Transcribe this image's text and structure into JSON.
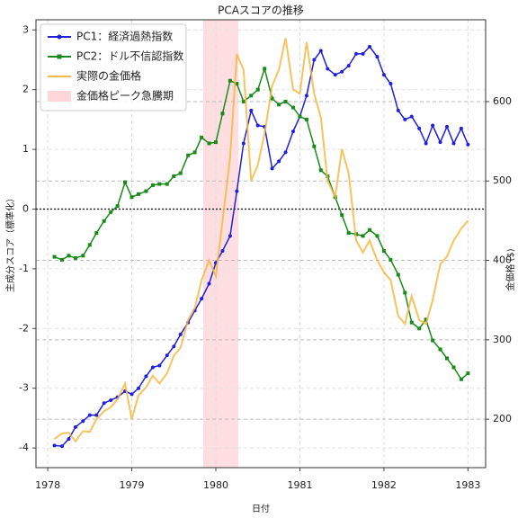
{
  "chart_data": {
    "type": "line",
    "title": "PCAスコアの推移",
    "x_label": "日付",
    "y_label": "主成分スコア（標準化）",
    "y2_label": "金価格 ($)",
    "x": [
      1978.08,
      1978.17,
      1978.25,
      1978.33,
      1978.42,
      1978.5,
      1978.58,
      1978.67,
      1978.75,
      1978.83,
      1978.92,
      1979.0,
      1979.08,
      1979.17,
      1979.25,
      1979.33,
      1979.42,
      1979.5,
      1979.58,
      1979.67,
      1979.75,
      1979.83,
      1979.92,
      1980.0,
      1980.08,
      1980.17,
      1980.25,
      1980.33,
      1980.42,
      1980.5,
      1980.58,
      1980.67,
      1980.75,
      1980.83,
      1980.92,
      1981.0,
      1981.08,
      1981.17,
      1981.25,
      1981.33,
      1981.42,
      1981.5,
      1981.58,
      1981.67,
      1981.75,
      1981.83,
      1981.92,
      1982.0,
      1982.08,
      1982.17,
      1982.25,
      1982.33,
      1982.42,
      1982.5,
      1982.58,
      1982.67,
      1982.75,
      1982.83,
      1982.92,
      1983.0
    ],
    "series": [
      {
        "name": "PC1：経済過熱指数",
        "color": "#1f1fdd",
        "marker": "circle",
        "values": [
          -3.96,
          -3.97,
          -3.85,
          -3.65,
          -3.55,
          -3.45,
          -3.45,
          -3.25,
          -3.2,
          -3.15,
          -3.05,
          -3.1,
          -3.0,
          -2.8,
          -2.65,
          -2.62,
          -2.45,
          -2.3,
          -2.1,
          -1.9,
          -1.7,
          -1.5,
          -1.25,
          -0.9,
          -0.7,
          -0.45,
          0.3,
          1.1,
          1.65,
          1.4,
          1.38,
          0.68,
          0.8,
          0.95,
          1.3,
          1.55,
          1.9,
          2.5,
          2.65,
          2.35,
          2.25,
          2.3,
          2.4,
          2.6,
          2.6,
          2.72,
          2.55,
          2.25,
          2.1,
          1.65,
          1.5,
          1.55,
          1.35,
          1.1,
          1.4,
          1.12,
          1.38,
          1.1,
          1.35,
          1.08
        ]
      },
      {
        "name": "PC2：ドル不信認指数",
        "color": "#1a8a1a",
        "marker": "square",
        "values": [
          -0.8,
          -0.85,
          -0.78,
          -0.82,
          -0.78,
          -0.6,
          -0.4,
          -0.2,
          -0.05,
          0.05,
          0.45,
          0.2,
          0.25,
          0.3,
          0.4,
          0.42,
          0.42,
          0.55,
          0.6,
          0.9,
          0.95,
          1.2,
          1.1,
          1.12,
          1.6,
          2.15,
          2.1,
          1.8,
          1.9,
          2.0,
          2.35,
          1.85,
          1.75,
          1.8,
          1.7,
          1.55,
          1.5,
          1.05,
          0.65,
          0.55,
          0.2,
          -0.1,
          -0.4,
          -0.42,
          -0.45,
          -0.35,
          -0.45,
          -0.7,
          -0.85,
          -1.1,
          -1.4,
          -1.9,
          -2.0,
          -1.85,
          -2.2,
          -2.35,
          -2.5,
          -2.65,
          -2.85,
          -2.75
        ]
      },
      {
        "name": "実際の金価格",
        "color": "#f5b942",
        "axis": "y2",
        "values": [
          175,
          182,
          183,
          172,
          185,
          184,
          200,
          210,
          215,
          225,
          245,
          200,
          230,
          240,
          255,
          245,
          258,
          280,
          290,
          325,
          340,
          375,
          400,
          380,
          450,
          530,
          660,
          640,
          500,
          520,
          560,
          620,
          640,
          680,
          615,
          610,
          675,
          610,
          580,
          500,
          480,
          540,
          510,
          425,
          410,
          425,
          400,
          385,
          375,
          330,
          320,
          355,
          325,
          320,
          350,
          395,
          405,
          425,
          440,
          450
        ]
      }
    ],
    "shaded_span": {
      "range": [
        1979.85,
        1980.27
      ],
      "label": "金価格ピーク急騰期",
      "color": "#ffd6d9"
    },
    "xlim": [
      1977.86,
      1983.21
    ],
    "xticks": [
      1978,
      1979,
      1980,
      1981,
      1982,
      1983
    ],
    "ylim": [
      -4.33,
      3.17
    ],
    "yticks": [
      -4,
      -3,
      -2,
      -1,
      0,
      1,
      2,
      3
    ],
    "y2lim": [
      139,
      703
    ],
    "y2ticks": [
      200,
      300,
      400,
      500,
      600
    ],
    "grid": true,
    "zero_line": true,
    "legend": "upper left",
    "y2_color": "#e8a020"
  }
}
